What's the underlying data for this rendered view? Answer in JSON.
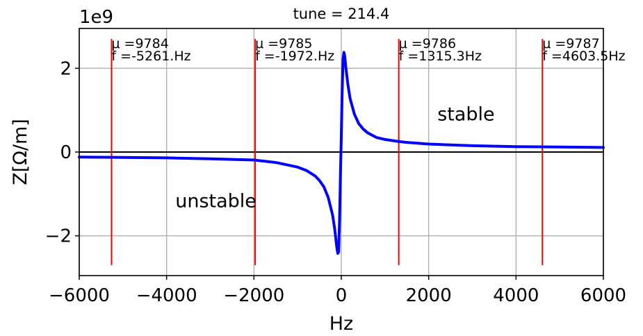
{
  "chart_data": {
    "type": "line",
    "title": "tune = 214.4",
    "xlabel": "Hz",
    "ylabel": "Z[Ω/m]",
    "y_offset_label": "1e9",
    "xlim": [
      -6000,
      6000
    ],
    "ylim": [
      -2.95,
      2.95
    ],
    "x_ticks": [
      -6000,
      -4000,
      -2000,
      0,
      2000,
      4000,
      6000
    ],
    "x_tick_labels": [
      "−6000",
      "−4000",
      "−2000",
      "0",
      "2000",
      "4000",
      "6000"
    ],
    "y_ticks": [
      -2,
      0,
      2
    ],
    "y_tick_labels": [
      "−2",
      "0",
      "2"
    ],
    "grid": true,
    "colors": {
      "impedance": "#0000ff",
      "modes": "#ff0000",
      "axis": "#000000",
      "grid": "#b0b0b0"
    },
    "impedance_curve": {
      "x": [
        -6000,
        -5000,
        -4000,
        -3000,
        -2000,
        -1500,
        -1000,
        -800,
        -600,
        -500,
        -400,
        -300,
        -200,
        -150,
        -100,
        -80,
        -60,
        -40,
        -20,
        0,
        20,
        40,
        60,
        80,
        100,
        150,
        200,
        300,
        400,
        500,
        600,
        800,
        1000,
        1315,
        1500,
        2000,
        3000,
        4000,
        5000,
        6000
      ],
      "y": [
        -0.12,
        -0.13,
        -0.14,
        -0.16,
        -0.19,
        -0.25,
        -0.36,
        -0.44,
        -0.57,
        -0.68,
        -0.83,
        -1.08,
        -1.5,
        -1.85,
        -2.3,
        -2.42,
        -2.38,
        -1.6,
        -0.6,
        0.4,
        1.5,
        2.22,
        2.38,
        2.28,
        2.05,
        1.62,
        1.28,
        0.9,
        0.68,
        0.55,
        0.46,
        0.35,
        0.3,
        0.25,
        0.23,
        0.19,
        0.15,
        0.13,
        0.12,
        0.11
      ]
    },
    "modes": [
      {
        "x": -5261,
        "mu_label": "μ =9784",
        "f_label": "f =-5261.Hz"
      },
      {
        "x": -1972,
        "mu_label": "μ =9785",
        "f_label": "f =-1972.Hz"
      },
      {
        "x": 1315.3,
        "mu_label": "μ =9786",
        "f_label": "f =1315.3Hz"
      },
      {
        "x": 4603.5,
        "mu_label": "μ =9787",
        "f_label": "f =4603.5Hz"
      }
    ],
    "mode_line_range": [
      -2.7,
      2.7
    ],
    "annotations": [
      {
        "text": "stable",
        "x": 2200,
        "y": 0.75
      },
      {
        "text": "unstable",
        "x": -3800,
        "y": -1.32
      }
    ]
  }
}
